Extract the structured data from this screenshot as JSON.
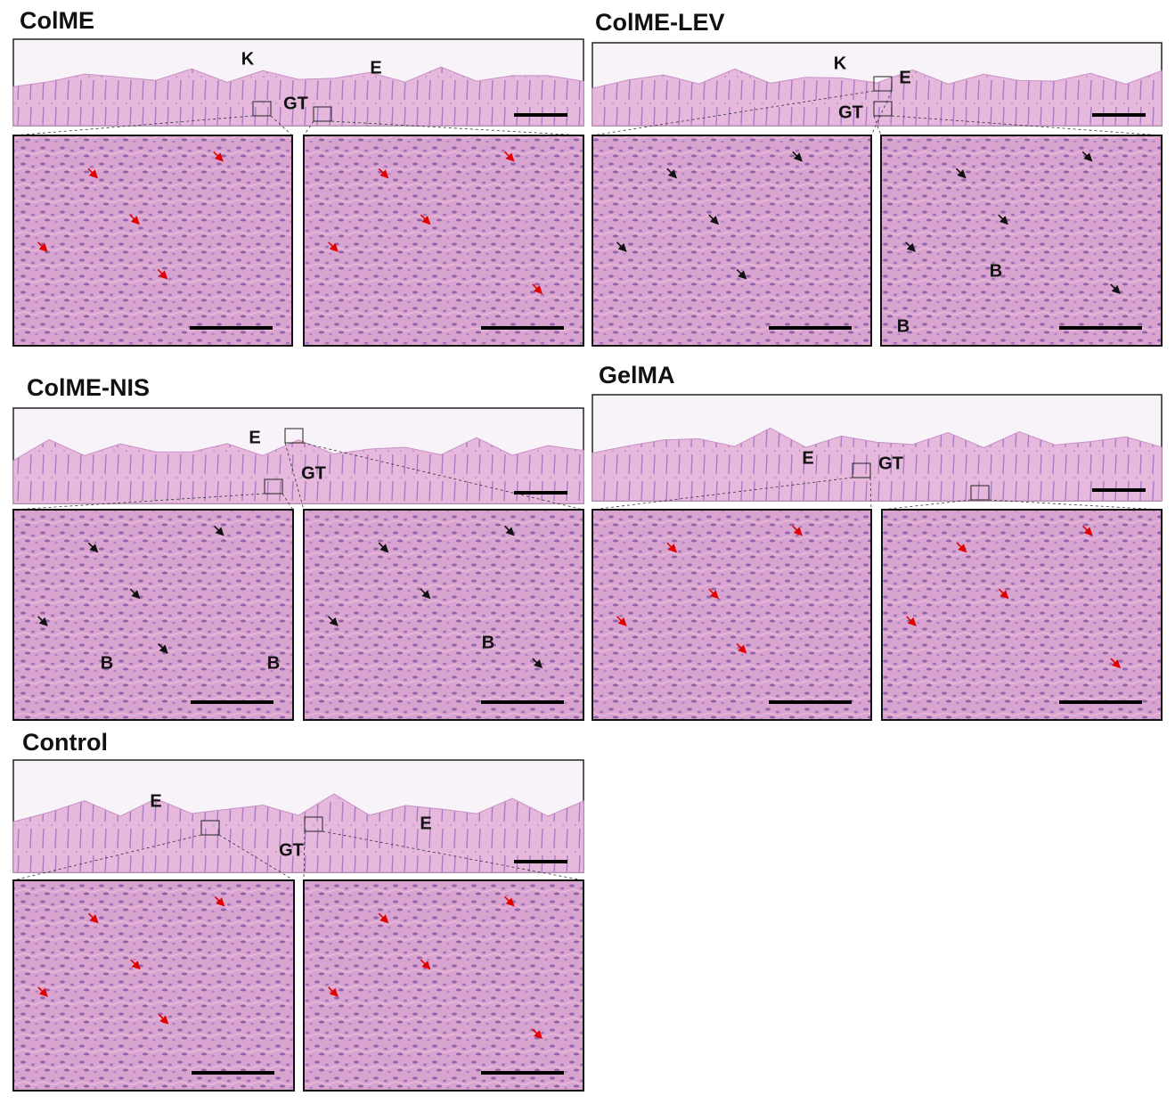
{
  "panels": [
    {
      "title": "ColME",
      "overview_labels": [
        "K",
        "E",
        "GT"
      ],
      "zoom_labels": [
        [],
        []
      ]
    },
    {
      "title": "ColME-LEV",
      "overview_labels": [
        "K",
        "E",
        "GT"
      ],
      "zoom_labels": [
        [],
        [
          "B",
          "B"
        ]
      ]
    },
    {
      "title": "ColME-NIS",
      "overview_labels": [
        "E",
        "GT"
      ],
      "zoom_labels": [
        [
          "B",
          "B"
        ],
        [
          "B"
        ]
      ]
    },
    {
      "title": "GelMA",
      "overview_labels": [
        "E",
        "GT"
      ],
      "zoom_labels": [
        [],
        []
      ]
    },
    {
      "title": "Control",
      "overview_labels": [
        "E",
        "GT",
        "E"
      ],
      "zoom_labels": [
        [],
        []
      ]
    }
  ]
}
